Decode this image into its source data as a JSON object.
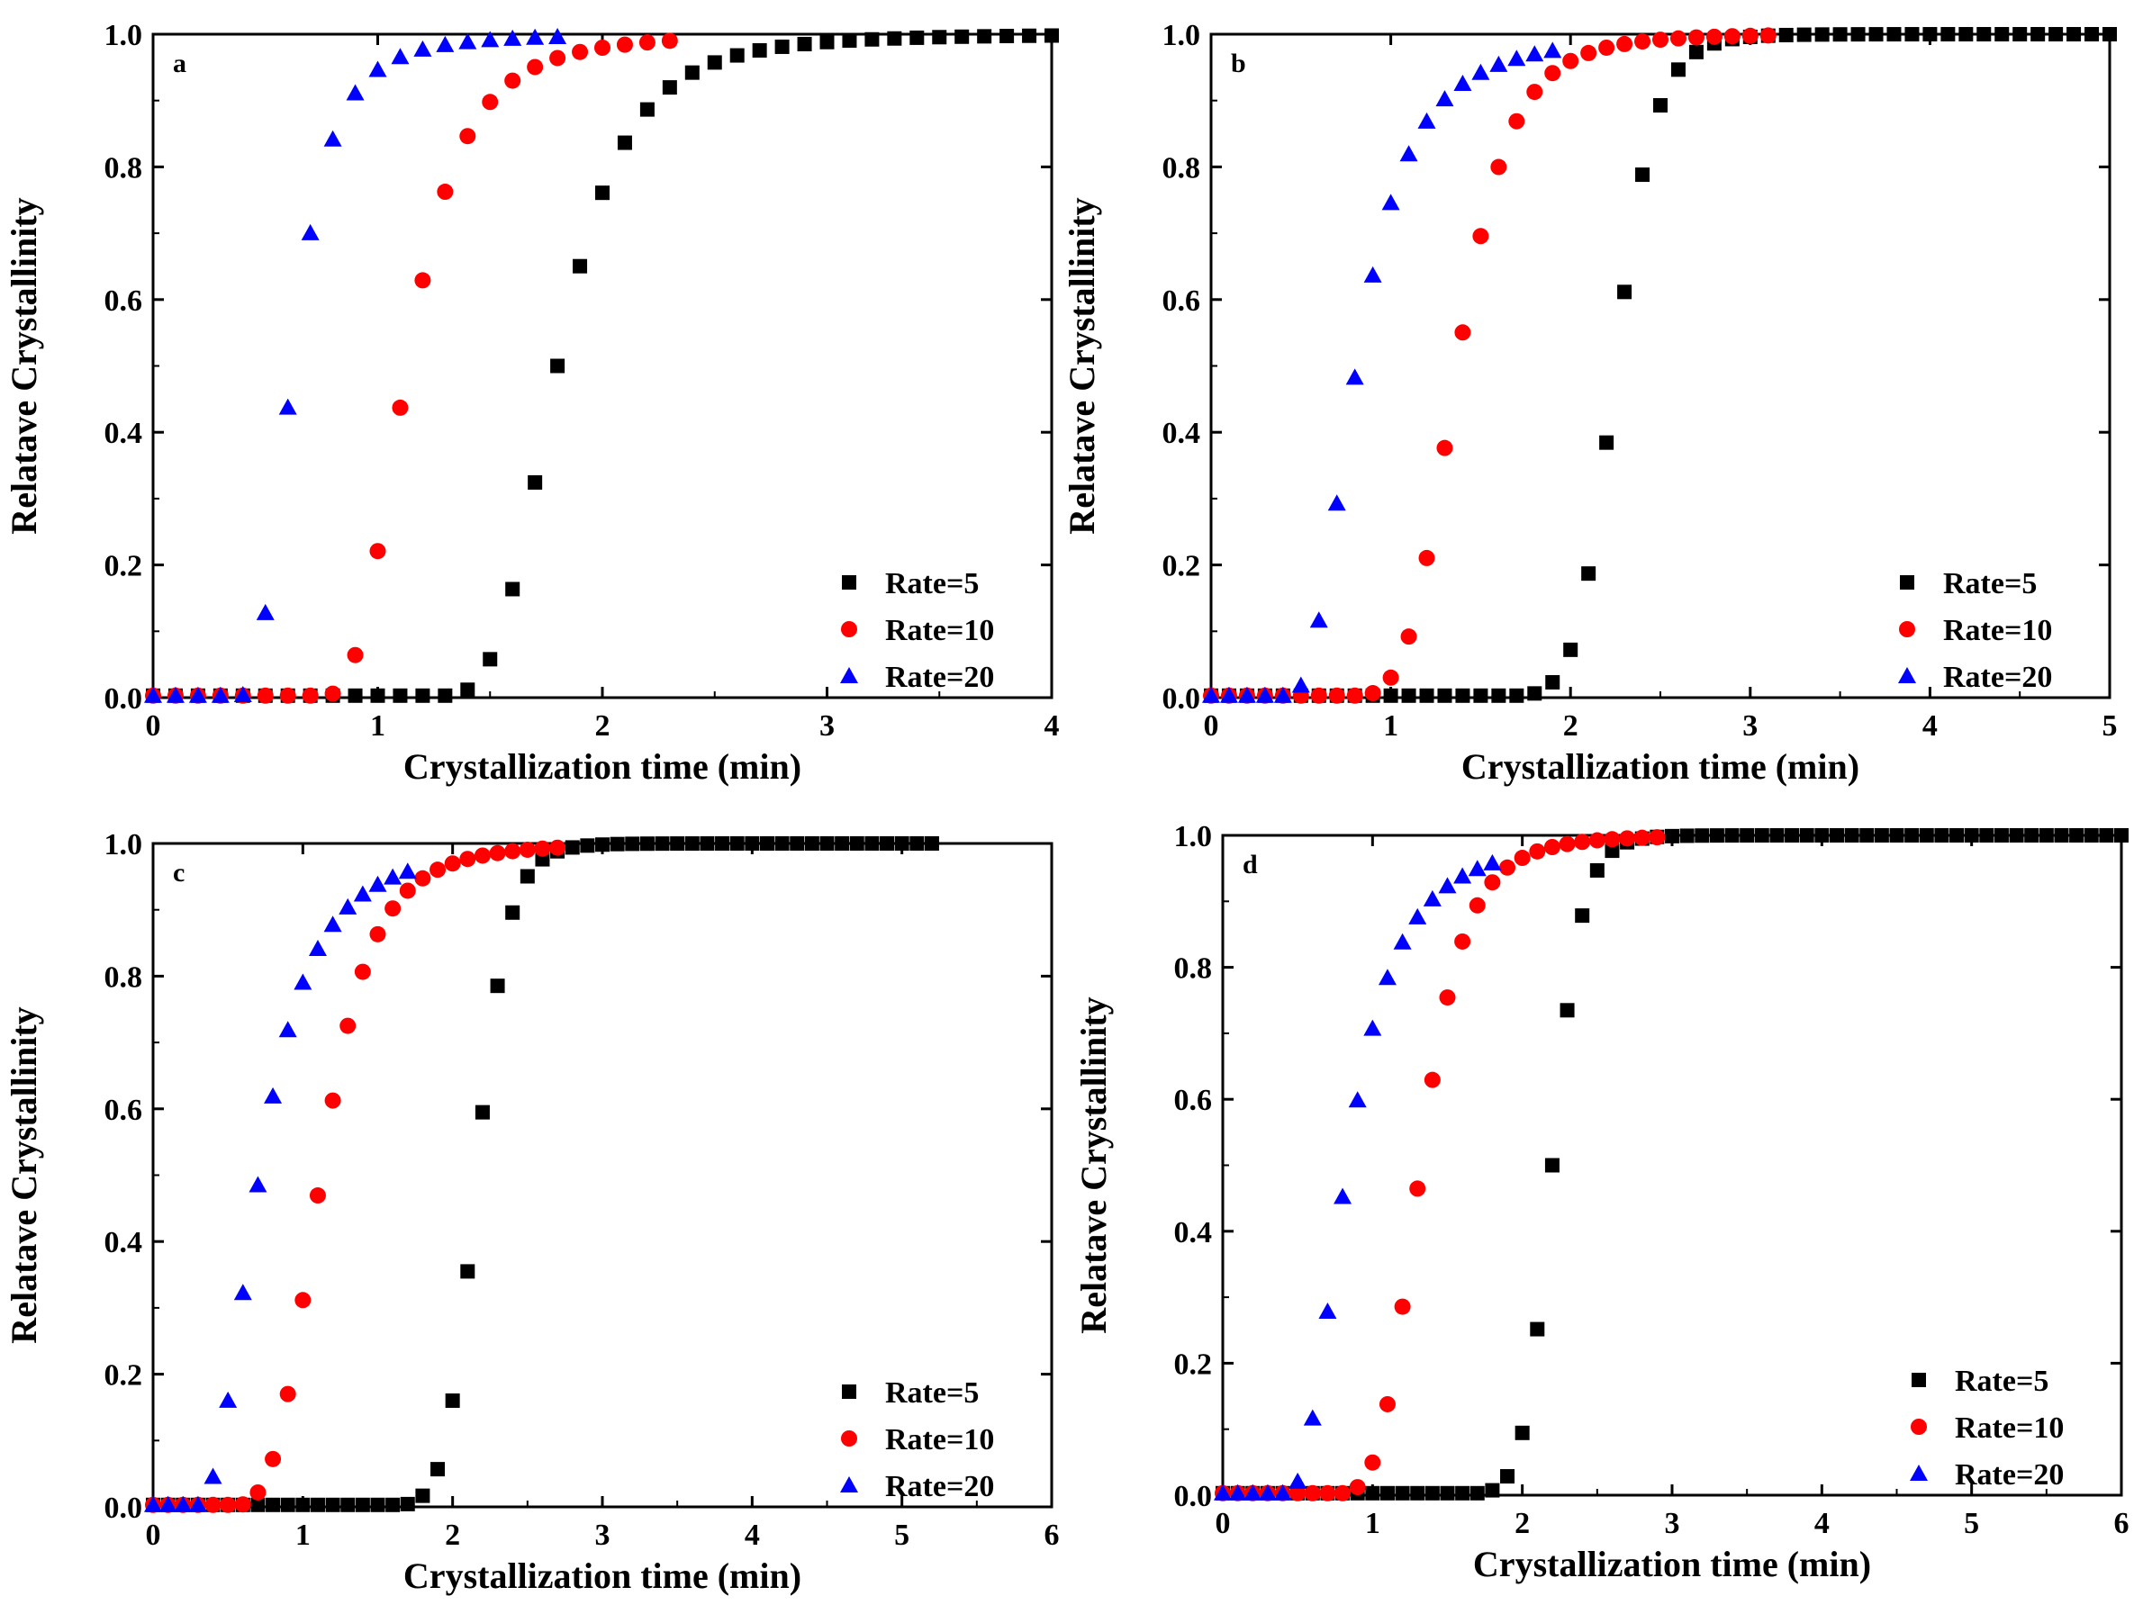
{
  "figure": {
    "x_axis_title": "Crystallization time (min)",
    "y_axis_title": "Relatave Crystallinity"
  },
  "chart_data": [
    {
      "type": "scatter",
      "panel": "a",
      "xlabel": "Crystallization time (min)",
      "ylabel": "Relatave Crystallinity",
      "xlim": [
        0,
        4
      ],
      "ylim": [
        0,
        1.0
      ],
      "xticks": [
        "0",
        "1",
        "2",
        "3",
        "4"
      ],
      "yticks": [
        "0.0",
        "0.2",
        "0.4",
        "0.6",
        "0.8",
        "1.0"
      ],
      "legend_position": "bottom-right",
      "series": [
        {
          "name": "Rate=5",
          "marker": "square",
          "color": "#000000",
          "t0": 1.2,
          "half": 1.8,
          "k": 13,
          "n": 2.4,
          "step": 0.1,
          "tmax": 4.0
        },
        {
          "name": "Rate=10",
          "marker": "circle",
          "color": "#ff0000",
          "t0": 0.7,
          "half": 1.13,
          "k": 7,
          "n": 3.0,
          "step": 0.1,
          "tmax": 2.3
        },
        {
          "name": "Rate=20",
          "marker": "triangle",
          "color": "#0000ff",
          "t0": 0.35,
          "half": 0.62,
          "k": 6,
          "n": 3.0,
          "step": 0.1,
          "tmax": 1.8
        }
      ]
    },
    {
      "type": "scatter",
      "panel": "b",
      "xlabel": "Crystallization time (min)",
      "ylabel": "Relatave Crystallinity",
      "xlim": [
        0,
        5
      ],
      "ylim": [
        0,
        1.0
      ],
      "xticks": [
        "0",
        "1",
        "2",
        "3",
        "4",
        "5"
      ],
      "yticks": [
        "0.0",
        "0.2",
        "0.4",
        "0.6",
        "0.8",
        "1.0"
      ],
      "legend_position": "bottom-right",
      "series": [
        {
          "name": "Rate=5",
          "marker": "square",
          "color": "#000000",
          "t0": 0.9,
          "half": 2.25,
          "k": 17,
          "n": 1.0,
          "step": 0.1,
          "tmax": 5.0
        },
        {
          "name": "Rate=10",
          "marker": "circle",
          "color": "#ff0000",
          "t0": 0.6,
          "half": 1.37,
          "k": 12,
          "n": 1.1,
          "step": 0.1,
          "tmax": 3.1
        },
        {
          "name": "Rate=20",
          "marker": "triangle",
          "color": "#0000ff",
          "t0": 0.4,
          "half": 0.81,
          "k": 9,
          "n": 1.8,
          "step": 0.1,
          "tmax": 1.9
        }
      ]
    },
    {
      "type": "scatter",
      "panel": "c",
      "xlabel": "Crystallization time (min)",
      "ylabel": "Relatave Crystallinity",
      "xlim": [
        0,
        6
      ],
      "ylim": [
        0,
        1.0
      ],
      "xticks": [
        "0",
        "1",
        "2",
        "3",
        "4",
        "5",
        "6"
      ],
      "yticks": [
        "0.0",
        "0.2",
        "0.4",
        "0.6",
        "0.8",
        "1.0"
      ],
      "legend_position": "bottom-right",
      "series": [
        {
          "name": "Rate=5",
          "marker": "square",
          "color": "#000000",
          "t0": 0.8,
          "half": 2.16,
          "k": 18,
          "n": 1.0,
          "step": 0.1,
          "tmax": 5.2
        },
        {
          "name": "Rate=10",
          "marker": "circle",
          "color": "#ff0000",
          "t0": 0.4,
          "half": 1.12,
          "k": 11,
          "n": 1.3,
          "step": 0.1,
          "tmax": 2.7
        },
        {
          "name": "Rate=20",
          "marker": "triangle",
          "color": "#0000ff",
          "t0": 0.25,
          "half": 0.71,
          "k": 8,
          "n": 1.3,
          "step": 0.1,
          "tmax": 1.7
        }
      ]
    },
    {
      "type": "scatter",
      "panel": "d",
      "xlabel": "Crystallization time (min)",
      "ylabel": "Relatave Crystallinity",
      "xlim": [
        0,
        6
      ],
      "ylim": [
        0,
        1.0
      ],
      "xticks": [
        "0",
        "1",
        "2",
        "3",
        "4",
        "5",
        "6"
      ],
      "yticks": [
        "0.0",
        "0.2",
        "0.4",
        "0.6",
        "0.8",
        "1.0"
      ],
      "legend_position": "bottom-right",
      "series": [
        {
          "name": "Rate=5",
          "marker": "square",
          "color": "#000000",
          "t0": 0.7,
          "half": 2.2,
          "k": 16,
          "n": 0.8,
          "step": 0.1,
          "tmax": 6.0
        },
        {
          "name": "Rate=10",
          "marker": "circle",
          "color": "#ff0000",
          "t0": 0.6,
          "half": 1.32,
          "k": 12,
          "n": 1.1,
          "step": 0.1,
          "tmax": 2.9
        },
        {
          "name": "Rate=20",
          "marker": "triangle",
          "color": "#0000ff",
          "t0": 0.4,
          "half": 0.83,
          "k": 8,
          "n": 1.5,
          "step": 0.1,
          "tmax": 1.8
        }
      ]
    }
  ]
}
